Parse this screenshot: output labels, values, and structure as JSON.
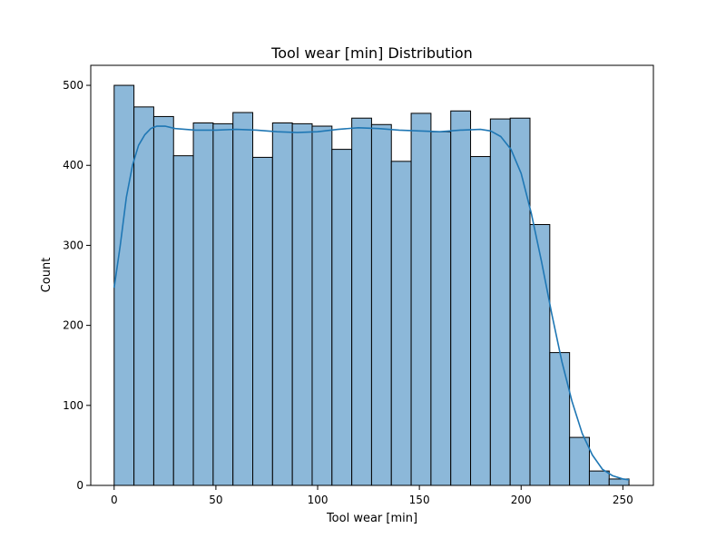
{
  "chart_data": {
    "type": "bar",
    "title": "Tool wear [min] Distribution",
    "xlabel": "Tool wear [min]",
    "ylabel": "Count",
    "xlim": [
      -11.5,
      265
    ],
    "ylim": [
      0,
      525
    ],
    "x_ticks": [
      0,
      50,
      100,
      150,
      200,
      250
    ],
    "y_ticks": [
      0,
      100,
      200,
      300,
      400,
      500
    ],
    "bin_start": 0,
    "bin_width": 9.7308,
    "counts": [
      500,
      473,
      461,
      412,
      453,
      452,
      466,
      410,
      453,
      452,
      449,
      420,
      459,
      451,
      405,
      465,
      442,
      468,
      411,
      458,
      459,
      326,
      166,
      60,
      18,
      8
    ],
    "kde": {
      "x": [
        0,
        3,
        6,
        9,
        12,
        15,
        18,
        21,
        25,
        30,
        40,
        50,
        60,
        70,
        80,
        90,
        100,
        110,
        120,
        130,
        140,
        150,
        160,
        170,
        180,
        185,
        190,
        195,
        200,
        205,
        210,
        215,
        220,
        225,
        230,
        235,
        240,
        245,
        250,
        253
      ],
      "y": [
        247,
        300,
        360,
        400,
        425,
        438,
        446,
        449,
        449,
        446,
        444,
        444,
        445,
        444,
        442,
        441,
        442,
        445,
        447,
        446,
        444,
        443,
        442,
        444,
        445,
        443,
        436,
        420,
        390,
        340,
        280,
        215,
        155,
        105,
        65,
        38,
        20,
        12,
        8,
        7
      ]
    },
    "grid": false,
    "colors": {
      "bar_fill": "#8cb8d9",
      "bar_edge": "#000000",
      "kde_line": "#1f77b4"
    }
  }
}
